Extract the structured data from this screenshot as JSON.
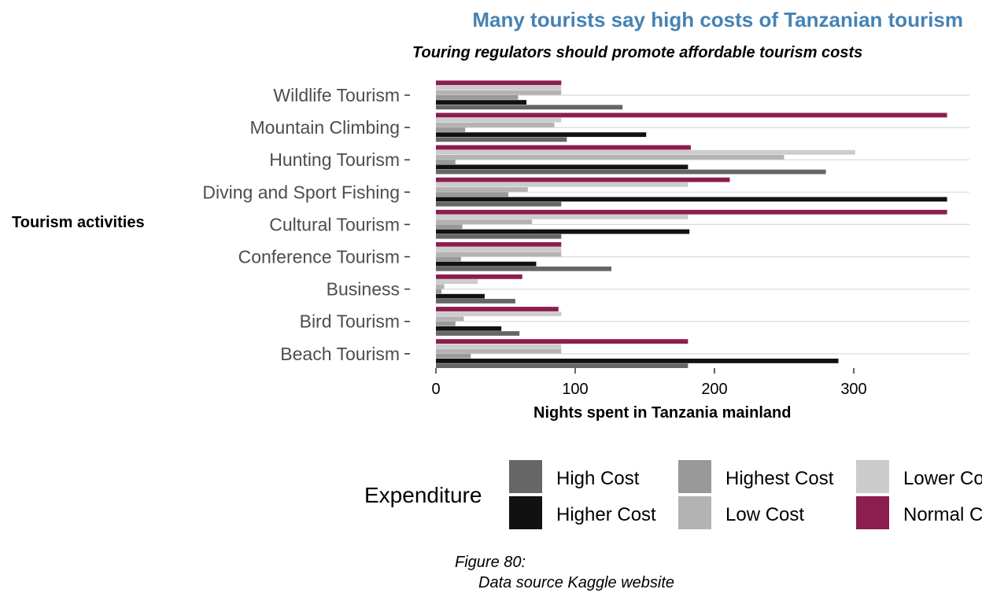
{
  "chart_data": {
    "type": "bar",
    "orientation": "horizontal",
    "title": "Many tourists say high costs of Tanzanian tourism",
    "subtitle": "Touring regulators should promote affordable tourism costs",
    "xlabel": "Nights spent in Tanzania mainland",
    "ylabel": "Tourism activities",
    "xlim": [
      0,
      380
    ],
    "xticks": [
      0,
      100,
      200,
      300
    ],
    "grid": "horizontal",
    "legend_title": "Expenditure",
    "legend_position": "bottom",
    "categories": [
      "Wildlife Tourism",
      "Mountain Climbing",
      "Hunting Tourism",
      "Diving and Sport Fishing",
      "Cultural Tourism",
      "Conference Tourism",
      "Business",
      "Bird Tourism",
      "Beach Tourism"
    ],
    "series": [
      {
        "name": "High Cost",
        "color": "#666666",
        "values": [
          134,
          94,
          280,
          90,
          90,
          126,
          57,
          60,
          181
        ]
      },
      {
        "name": "Higher Cost",
        "color": "#111111",
        "values": [
          65,
          151,
          181,
          367,
          182,
          72,
          35,
          47,
          289
        ]
      },
      {
        "name": "Highest Cost",
        "color": "#999999",
        "values": [
          59,
          21,
          14,
          52,
          19,
          18,
          4,
          14,
          25
        ]
      },
      {
        "name": "Low Cost",
        "color": "#b3b3b3",
        "values": [
          90,
          85,
          250,
          66,
          69,
          90,
          6,
          20,
          90
        ]
      },
      {
        "name": "Lower Cost",
        "color": "#cccccc",
        "values": [
          90,
          90,
          301,
          181,
          181,
          90,
          30,
          90,
          90
        ]
      },
      {
        "name": "Normal Cost",
        "color": "#8b1e4e",
        "values": [
          90,
          367,
          183,
          211,
          367,
          90,
          62,
          88,
          181
        ]
      }
    ]
  },
  "legend_labels": {
    "high_cost": "High Cost",
    "higher_cost": "Higher Cost",
    "highest_cost": "Highest Cost",
    "low_cost": "Low Cost",
    "lower_cost": "Lower Cost",
    "normal_cost": "Normal Cost"
  },
  "caption": {
    "line1": "Figure 80:",
    "line2": "Data source Kaggle website"
  }
}
